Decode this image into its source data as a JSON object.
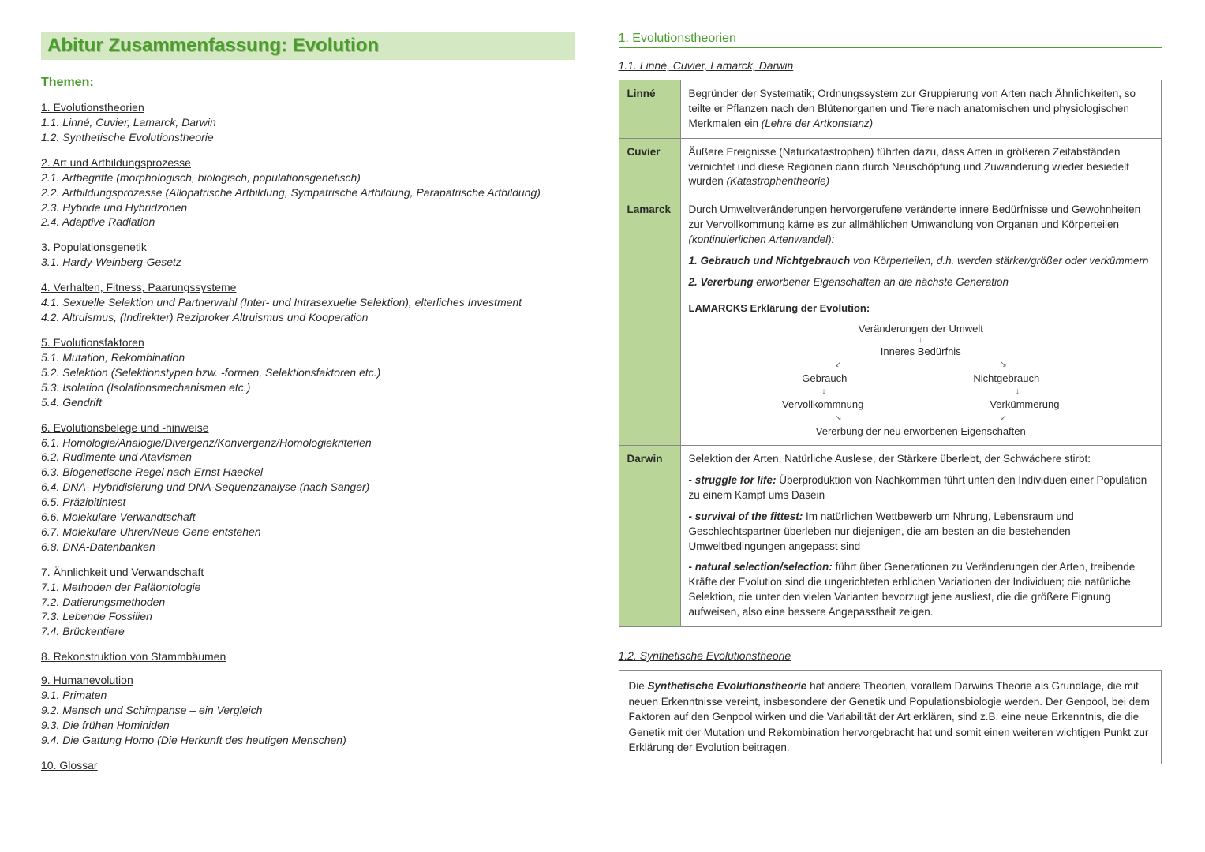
{
  "title": "Abitur Zusammenfassung:  Evolution",
  "themen_label": "Themen:",
  "toc": [
    {
      "h": "1. Evolutionstheorien",
      "subs": [
        "1.1. Linné, Cuvier, Lamarck, Darwin",
        "1.2. Synthetische Evolutionstheorie"
      ]
    },
    {
      "h": "2. Art und Artbildungsprozesse",
      "subs": [
        "2.1. Artbegriffe (morphologisch, biologisch, populationsgenetisch)",
        "2.2. Artbildungsprozesse (Allopatrische Artbildung, Sympatrische Artbildung, Parapatrische Artbildung)",
        "2.3. Hybride und Hybridzonen",
        "2.4. Adaptive Radiation"
      ]
    },
    {
      "h": "3. Populationsgenetik",
      "subs": [
        "3.1. Hardy-Weinberg-Gesetz"
      ]
    },
    {
      "h": "4. Verhalten, Fitness, Paarungssysteme",
      "subs": [
        "4.1. Sexuelle Selektion und Partnerwahl (Inter- und Intrasexuelle Selektion), elterliches Investment",
        "4.2. Altruismus, (Indirekter) Reziproker Altruismus und Kooperation"
      ]
    },
    {
      "h": "5. Evolutionsfaktoren",
      "subs": [
        "5.1. Mutation, Rekombination",
        "5.2. Selektion (Selektionstypen bzw. -formen, Selektionsfaktoren etc.)",
        "5.3. Isolation (Isolationsmechanismen etc.)",
        "5.4. Gendrift"
      ]
    },
    {
      "h": "6. Evolutionsbelege und -hinweise",
      "subs": [
        "6.1. Homologie/Analogie/Divergenz/Konvergenz/Homologiekriterien",
        "6.2. Rudimente und Atavismen",
        "6.3. Biogenetische Regel nach Ernst Haeckel",
        "6.4. DNA- Hybridisierung und DNA-Sequenzanalyse (nach Sanger)",
        "6.5. Präzipitintest",
        "6.6. Molekulare Verwandtschaft",
        "6.7. Molekulare Uhren/Neue Gene entstehen",
        "6.8. DNA-Datenbanken"
      ]
    },
    {
      "h": "7. Ähnlichkeit und Verwandschaft",
      "subs": [
        "7.1. Methoden der Paläontologie",
        "7.2. Datierungsmethoden",
        "7.3. Lebende Fossilien",
        "7.4. Brückentiere"
      ]
    },
    {
      "h": "8. Rekonstruktion von Stammbäumen",
      "subs": []
    },
    {
      "h": "9. Humanevolution",
      "subs": [
        "9.1. Primaten",
        "9.2. Mensch und Schimpanse – ein Vergleich",
        "9.3. Die frühen Hominiden",
        "9.4. Die Gattung Homo (Die Herkunft des heutigen Menschen)"
      ]
    },
    {
      "h": "10. Glossar",
      "subs": []
    }
  ],
  "sec1": "1. Evolutionstheorien",
  "sub11": "1.1. Linné, Cuvier, Lamarck, Darwin",
  "linne": {
    "name": "Linné",
    "text": "Begründer der Systematik; Ordnungssystem zur Gruppierung von Arten nach Ähnlichkeiten, so teilte er Pflanzen nach den Blütenorganen und Tiere nach anatomischen und physiologischen Merkmalen ein ",
    "ital": "(Lehre der Artkonstanz)"
  },
  "cuvier": {
    "name": "Cuvier",
    "text": "Äußere Ereignisse (Naturkatastrophen) führten dazu, dass Arten in größeren Zeitabständen vernichtet und diese Regionen dann durch Neuschöpfung und Zuwanderung wieder besiedelt wurden ",
    "ital": "(Katastrophentheorie)"
  },
  "lamarck": {
    "name": "Lamarck",
    "intro": "Durch Umweltveränderungen hervorgerufene veränderte innere Bedürfnisse und Gewohnheiten zur Vervollkommung käme es zur allmählichen Umwandlung von Organen und Körperteilen ",
    "intro_ital": "(kontinuierlichen Artenwandel):",
    "pt1_b": "1. Gebrauch und Nichtgebrauch",
    "pt1_r": " von Körperteilen, d.h. werden stärker/größer oder verkümmern",
    "pt2_b": "2. Vererbung",
    "pt2_r": " erworbener Eigenschaften an die nächste Generation",
    "diag_title": "LAMARCKS Erklärung der Evolution:",
    "d1": "Veränderungen der Umwelt",
    "d2": "Inneres Bedürfnis",
    "d3a": "Gebrauch",
    "d3b": "Nichtgebrauch",
    "d4a": "Vervollkommnung",
    "d4b": "Verkümmerung",
    "d5": "Vererbung der neu erworbenen Eigenschaften"
  },
  "darwin": {
    "name": "Darwin",
    "intro": "Selektion der Arten, Natürliche Auslese, der Stärkere überlebt, der Schwächere stirbt:",
    "p1_b": "- struggle for life:",
    "p1_r": "  Überproduktion von Nachkommen führt unten den Individuen einer Population zu einem Kampf ums Dasein",
    "p2_b": "- survival of the fittest:",
    "p2_r": "  Im natürlichen Wettbewerb um Nhrung, Lebensraum und Geschlechtspartner überleben nur diejenigen, die am besten an die bestehenden Umweltbedingungen angepasst sind",
    "p3_b": "- natural selection/selection:",
    "p3_r": "  führt über Generationen zu Veränderungen der Arten, treibende Kräfte der Evolution sind die ungerichteten erblichen Variationen der Individuen; die natürliche Selektion, die unter den vielen Varianten bevorzugt jene ausliest, die die größere Eignung aufweisen, also eine bessere Angepasstheit zeigen."
  },
  "sub12": "1.2. Synthetische Evolutionstheorie",
  "box12_pre": "Die ",
  "box12_b": "Synthetische Evolutionstheorie",
  "box12_post": "  hat andere Theorien, vorallem Darwins Theorie als Grundlage, die mit neuen Erkenntnisse vereint, insbesondere der Genetik und Populationsbiologie werden. Der Genpool, bei dem Faktoren auf den Genpool wirken und die Variabilität der Art erklären, sind z.B. eine neue Erkenntnis, die die Genetik mit der Mutation und Rekombination hervorgebracht hat und somit einen weiteren wichtigen Punkt zur Erklärung der Evolution beitragen.",
  "colors": {
    "accent": "#4a9c2e",
    "title_bg": "#d4e8c4",
    "cell_bg": "#b9d598",
    "border": "#888888"
  }
}
